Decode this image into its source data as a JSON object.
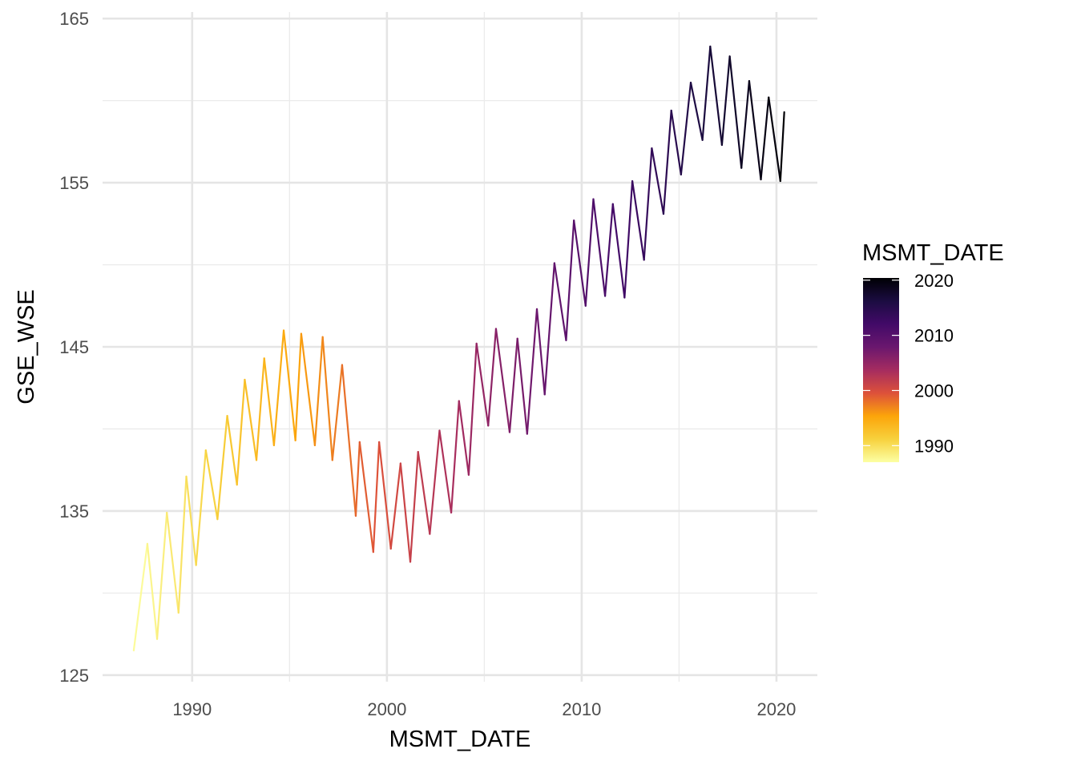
{
  "chart_data": {
    "type": "line",
    "title": "",
    "xlabel": "MSMT_DATE",
    "ylabel": "GSE_WSE",
    "xlim": [
      1985.4,
      2022.1
    ],
    "ylim": [
      124.6,
      165.4
    ],
    "x_ticks": [
      1990,
      2000,
      2010,
      2020
    ],
    "x_tick_labels": [
      "1990",
      "2000",
      "2010",
      "2020"
    ],
    "x_minor_ticks": [
      1995,
      2005,
      2015
    ],
    "y_ticks": [
      125,
      135,
      145,
      155,
      165
    ],
    "y_tick_labels": [
      "125",
      "135",
      "145",
      "155",
      "165"
    ],
    "y_minor_ticks": [
      130,
      140,
      150,
      160
    ],
    "grid": true,
    "color_mapping": "MSMT_DATE (continuous, inferno palette reversed)",
    "legend": {
      "title": "MSMT_DATE",
      "position": "right",
      "range": [
        1987.0,
        2020.4
      ],
      "breaks": [
        1990,
        2000,
        2010,
        2020
      ],
      "break_labels": [
        "1990",
        "2000",
        "2010",
        "2020"
      ],
      "colors": [
        "#fcffa4",
        "#f7d13d",
        "#fca50a",
        "#dd513a",
        "#a52c60",
        "#6a176e",
        "#420a68",
        "#1b0c41",
        "#000004"
      ]
    },
    "series": [
      {
        "name": "GSE_WSE",
        "x": [
          1987.0,
          1987.7,
          1988.2,
          1988.7,
          1989.3,
          1989.7,
          1990.2,
          1990.7,
          1991.3,
          1991.8,
          1992.3,
          1992.7,
          1993.3,
          1993.7,
          1994.2,
          1994.7,
          1995.3,
          1995.6,
          1996.3,
          1996.7,
          1997.2,
          1997.7,
          1998.4,
          1998.6,
          1999.3,
          1999.6,
          2000.2,
          2000.7,
          2001.2,
          2001.6,
          2002.2,
          2002.7,
          2003.3,
          2003.7,
          2004.2,
          2004.6,
          2005.2,
          2005.6,
          2006.3,
          2006.7,
          2007.2,
          2007.7,
          2008.1,
          2008.6,
          2009.2,
          2009.6,
          2010.2,
          2010.6,
          2011.2,
          2011.6,
          2012.2,
          2012.6,
          2013.2,
          2013.6,
          2014.2,
          2014.6,
          2015.1,
          2015.6,
          2016.2,
          2016.6,
          2017.2,
          2017.6,
          2018.2,
          2018.6,
          2019.2,
          2019.6,
          2020.2,
          2020.4
        ],
        "y": [
          126.5,
          133.0,
          127.2,
          134.9,
          128.8,
          137.1,
          131.7,
          138.7,
          134.5,
          140.8,
          136.6,
          143.0,
          138.1,
          144.3,
          139.0,
          146.0,
          139.3,
          145.8,
          139.0,
          145.6,
          138.1,
          143.9,
          134.7,
          139.2,
          132.5,
          139.2,
          132.7,
          137.9,
          131.9,
          138.6,
          133.6,
          139.9,
          134.9,
          141.7,
          137.2,
          145.2,
          140.2,
          146.1,
          139.8,
          145.5,
          139.7,
          147.3,
          142.1,
          150.1,
          145.4,
          152.7,
          147.5,
          154.0,
          148.1,
          153.7,
          148.0,
          155.1,
          150.3,
          157.1,
          153.1,
          159.4,
          155.5,
          161.1,
          157.6,
          163.3,
          157.3,
          162.7,
          155.9,
          161.2,
          155.2,
          160.2,
          155.1,
          159.3
        ]
      }
    ]
  }
}
